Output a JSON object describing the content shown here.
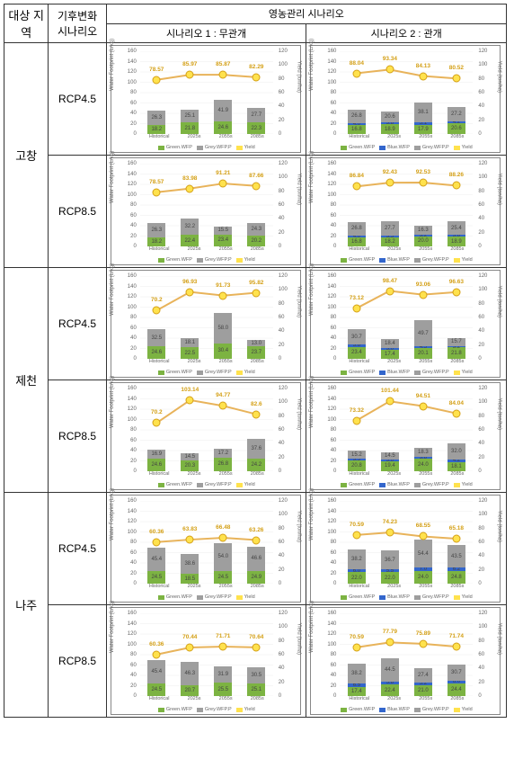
{
  "headers": {
    "region": "대상\n지역",
    "climate": "기후변화\n시나리오",
    "mgmt": "영농관리 시나리오",
    "s1": "시나리오 1 : 무관개",
    "s2": "시나리오 2 : 관개"
  },
  "axes": {
    "y_label": "Water Footprint (L/kg)",
    "y2_label": "Yield (ton/ha)",
    "y_max": 160,
    "y2_max": 120,
    "y_ticks": [
      0,
      20,
      40,
      60,
      80,
      100,
      120,
      140,
      160
    ],
    "y2_ticks": [
      0,
      20,
      40,
      60,
      80,
      100,
      120
    ],
    "x_labels": [
      "Historical",
      "2025s",
      "2055s",
      "2085s"
    ]
  },
  "legend1": [
    "Green.WFP",
    "Grey.WFP.P",
    "Yield"
  ],
  "legend2": [
    "Green.WFP",
    "Blue.WFP",
    "Grey.WFP.P",
    "Yield"
  ],
  "colors": {
    "green": "#7cb342",
    "blue": "#3366cc",
    "grey": "#9e9e9e",
    "yield_line": "#e8b35a",
    "yield_marker": "#ffe24d",
    "yield_border": "#d4a017",
    "border": "#888",
    "text": "#666"
  },
  "regions": [
    {
      "name": "고창",
      "rows": [
        {
          "rcp": "RCP4.5",
          "s1": {
            "bars": [
              {
                "g": 18.2,
                "gr": 26.3
              },
              {
                "g": 21.8,
                "gr": 25.1
              },
              {
                "g": 24.6,
                "gr": 41.9
              },
              {
                "g": 22.3,
                "gr": 27.7
              }
            ],
            "yield": [
              78.57,
              85.97,
              85.87,
              82.29
            ]
          },
          "s2": {
            "bars": [
              {
                "g": 16.8,
                "b": 4.0,
                "gr": 26.8
              },
              {
                "g": 18.9,
                "b": 3.8,
                "gr": 20.6
              },
              {
                "g": 17.9,
                "b": 5.1,
                "gr": 38.1
              },
              {
                "g": 20.6,
                "b": 4.2,
                "gr": 27.2
              }
            ],
            "yield": [
              88.04,
              93.34,
              84.13,
              80.52
            ]
          }
        },
        {
          "rcp": "RCP8.5",
          "s1": {
            "bars": [
              {
                "g": 18.2,
                "gr": 26.3
              },
              {
                "g": 22.4,
                "gr": 32.2
              },
              {
                "g": 23.4,
                "gr": 15.5
              },
              {
                "g": 20.2,
                "gr": 24.3
              }
            ],
            "yield": [
              78.57,
              83.98,
              91.21,
              87.66
            ]
          },
          "s2": {
            "bars": [
              {
                "g": 16.8,
                "b": 4.0,
                "gr": 26.8
              },
              {
                "g": 18.2,
                "b": 3.5,
                "gr": 27.7
              },
              {
                "g": 20.0,
                "b": 3.2,
                "gr": 16.3
              },
              {
                "g": 18.9,
                "b": 3.8,
                "gr": 25.4
              }
            ],
            "yield": [
              86.84,
              92.43,
              92.53,
              88.26
            ]
          }
        }
      ]
    },
    {
      "name": "제천",
      "rows": [
        {
          "rcp": "RCP4.5",
          "s1": {
            "bars": [
              {
                "g": 24.6,
                "gr": 32.5
              },
              {
                "g": 22.5,
                "gr": 18.1
              },
              {
                "g": 30.4,
                "gr": 58.0
              },
              {
                "g": 23.7,
                "gr": 13.0
              }
            ],
            "yield": [
              70.2,
              96.93,
              91.73,
              95.82
            ]
          },
          "s2": {
            "bars": [
              {
                "g": 23.4,
                "b": 3.8,
                "gr": 30.7
              },
              {
                "g": 17.4,
                "b": 3.0,
                "gr": 18.4
              },
              {
                "g": 20.1,
                "b": 4.5,
                "gr": 49.7
              },
              {
                "g": 21.8,
                "b": 3.2,
                "gr": 15.7
              }
            ],
            "yield": [
              73.12,
              98.47,
              93.06,
              96.63
            ]
          }
        },
        {
          "rcp": "RCP8.5",
          "s1": {
            "bars": [
              {
                "g": 24.6,
                "gr": 16.9
              },
              {
                "g": 20.3,
                "gr": 14.5
              },
              {
                "g": 26.8,
                "gr": 17.2
              },
              {
                "g": 24.2,
                "gr": 37.6
              }
            ],
            "yield": [
              70.2,
              103.14,
              94.77,
              82.6
            ]
          },
          "s2": {
            "bars": [
              {
                "g": 20.8,
                "b": 3.5,
                "gr": 15.2
              },
              {
                "g": 19.4,
                "b": 3.0,
                "gr": 14.5
              },
              {
                "g": 24.0,
                "b": 3.8,
                "gr": 18.3
              },
              {
                "g": 18.1,
                "b": 4.2,
                "gr": 32.0
              }
            ],
            "yield": [
              73.32,
              101.44,
              94.51,
              84.04
            ]
          }
        }
      ]
    },
    {
      "name": "나주",
      "rows": [
        {
          "rcp": "RCP4.5",
          "s1": {
            "bars": [
              {
                "g": 24.5,
                "gr": 45.4
              },
              {
                "g": 18.5,
                "gr": 38.6
              },
              {
                "g": 24.5,
                "gr": 54.0
              },
              {
                "g": 24.9,
                "gr": 46.6
              }
            ],
            "yield": [
              60.36,
              63.83,
              66.48,
              63.26
            ]
          },
          "s2": {
            "bars": [
              {
                "g": 22.0,
                "b": 6.0,
                "gr": 38.2
              },
              {
                "g": 22.0,
                "b": 5.5,
                "gr": 36.7
              },
              {
                "g": 24.0,
                "b": 7.0,
                "gr": 54.4
              },
              {
                "g": 24.8,
                "b": 6.2,
                "gr": 43.5
              }
            ],
            "yield": [
              70.59,
              74.23,
              68.55,
              65.18
            ]
          }
        },
        {
          "rcp": "RCP8.5",
          "s1": {
            "bars": [
              {
                "g": 24.5,
                "gr": 45.4
              },
              {
                "g": 20.7,
                "gr": 46.3
              },
              {
                "g": 25.5,
                "gr": 31.9
              },
              {
                "g": 25.1,
                "gr": 30.5
              }
            ],
            "yield": [
              60.36,
              70.44,
              71.71,
              70.64
            ]
          },
          "s2": {
            "bars": [
              {
                "g": 17.4,
                "b": 6.5,
                "gr": 38.2
              },
              {
                "g": 22.4,
                "b": 5.8,
                "gr": 44.5
              },
              {
                "g": 21.0,
                "b": 5.2,
                "gr": 27.4
              },
              {
                "g": 24.4,
                "b": 6.0,
                "gr": 30.7
              }
            ],
            "yield": [
              70.59,
              77.79,
              75.89,
              71.74
            ]
          }
        }
      ]
    }
  ]
}
